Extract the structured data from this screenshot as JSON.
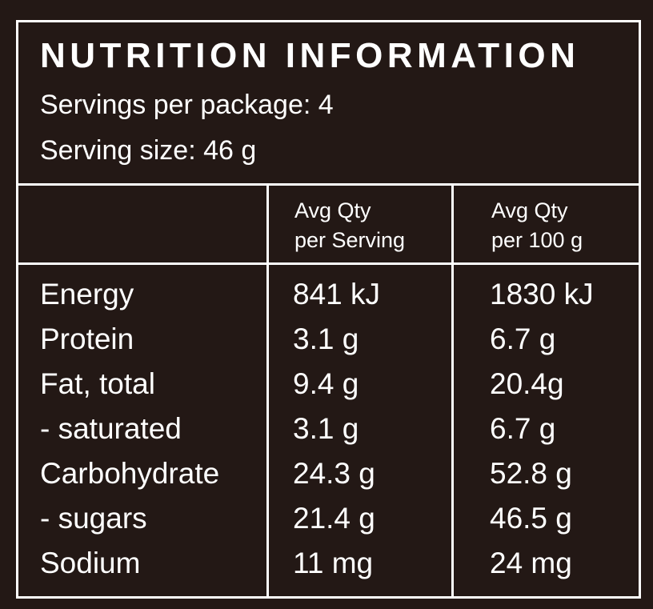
{
  "header": {
    "title": "NUTRITION INFORMATION",
    "servings": "Servings per package: 4",
    "serving_size": "Serving size: 46 g"
  },
  "table": {
    "columns": [
      [
        "Avg Qty",
        "per Serving"
      ],
      [
        "Avg Qty",
        "per 100 g"
      ]
    ],
    "rows": [
      [
        "Energy",
        "841 kJ",
        "1830 kJ"
      ],
      [
        "Protein",
        "3.1 g",
        "6.7 g"
      ],
      [
        "Fat, total",
        "9.4 g",
        "20.4g"
      ],
      [
        "- saturated",
        "3.1 g",
        "6.7 g"
      ],
      [
        "Carbohydrate",
        "24.3 g",
        "52.8 g"
      ],
      [
        "- sugars",
        "21.4 g",
        "46.5 g"
      ],
      [
        "Sodium",
        "11 mg",
        "24 mg"
      ]
    ]
  }
}
